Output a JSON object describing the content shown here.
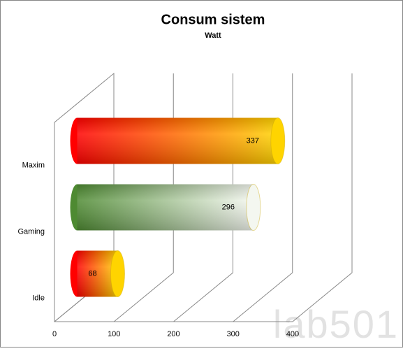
{
  "chart_data": {
    "type": "cylinder-bar",
    "title": "Consum sistem",
    "subtitle": "Watt",
    "categories": [
      "Maxim",
      "Gaming",
      "Idle"
    ],
    "values": [
      337,
      296,
      68
    ],
    "gradients": [
      [
        "#ff0000",
        "#ffd400"
      ],
      [
        "#4e8a32",
        "#f4f7f0"
      ],
      [
        "#ff0000",
        "#ffd400"
      ]
    ],
    "xlim": [
      0,
      400
    ],
    "xticks": [
      0,
      100,
      200,
      300,
      400
    ],
    "grid": true,
    "watermark": "lab501"
  }
}
